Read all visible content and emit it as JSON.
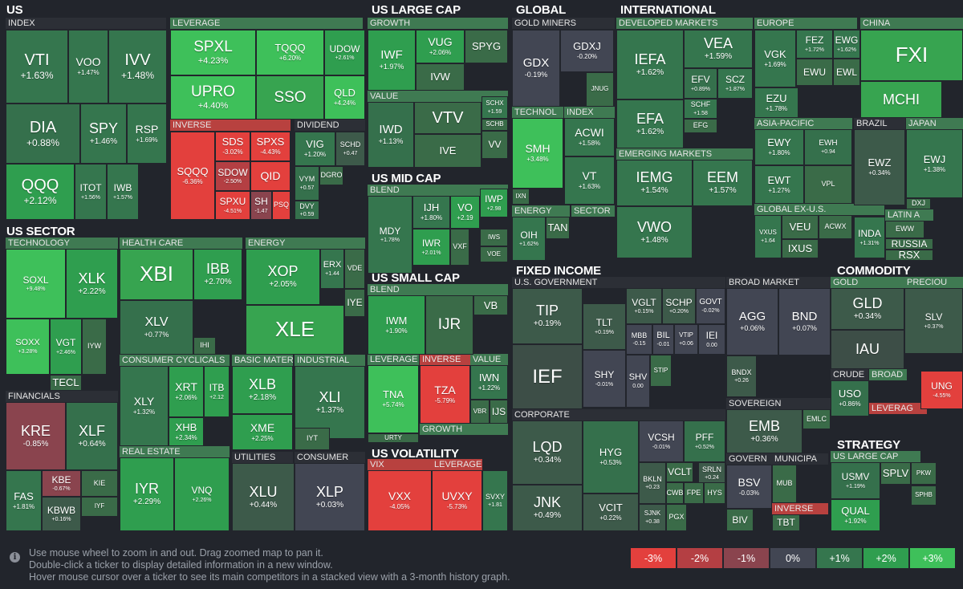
{
  "colors": {
    "background": "#22252c",
    "header_band": "#2c2f36",
    "scale": {
      "-3": "#e3403d",
      "-2": "#b43f43",
      "-1": "#8a444e",
      "0": "#424653",
      "1": "#35764e",
      "2": "#2f9e4f",
      "3": "#3ec05a"
    }
  },
  "sectors": [
    {
      "label": "US"
    },
    {
      "label": "US LARGE CAP"
    },
    {
      "label": "GLOBAL"
    },
    {
      "label": "INTERNATIONAL"
    },
    {
      "label": "US SECTOR"
    },
    {
      "label": "US MID CAP"
    },
    {
      "label": "US SMALL CAP"
    },
    {
      "label": "FIXED INCOME"
    },
    {
      "label": "COMMODITY"
    },
    {
      "label": "US VOLATILITY"
    },
    {
      "label": "STRATEGY"
    }
  ],
  "industries": [
    {
      "label": "INDEX"
    },
    {
      "label": "LEVERAGE"
    },
    {
      "label": "INVERSE"
    },
    {
      "label": "DIVIDEND"
    },
    {
      "label": "GROWTH"
    },
    {
      "label": "VALUE"
    },
    {
      "label": "GOLD MINERS"
    },
    {
      "label": "TECHNOL"
    },
    {
      "label": "INDEX"
    },
    {
      "label": "ENERGY"
    },
    {
      "label": "SECTOR"
    },
    {
      "label": "DEVELOPED MARKETS"
    },
    {
      "label": "EMERGING MARKETS"
    },
    {
      "label": "EUROPE"
    },
    {
      "label": "ASIA-PACIFIC"
    },
    {
      "label": "GLOBAL EX-U.S."
    },
    {
      "label": "CHINA"
    },
    {
      "label": "BRAZIL"
    },
    {
      "label": "JAPAN"
    },
    {
      "label": "LATIN A"
    },
    {
      "label": "TECHNOLOGY"
    },
    {
      "label": "HEALTH CARE"
    },
    {
      "label": "ENERGY"
    },
    {
      "label": "FINANCIALS"
    },
    {
      "label": "CONSUMER CYCLICALS"
    },
    {
      "label": "BASIC MATER"
    },
    {
      "label": "INDUSTRIAL"
    },
    {
      "label": "REAL ESTATE"
    },
    {
      "label": "UTILITIES"
    },
    {
      "label": "CONSUMER"
    },
    {
      "label": "BLEND"
    },
    {
      "label": "BLEND"
    },
    {
      "label": "LEVERAGE"
    },
    {
      "label": "INVERSE"
    },
    {
      "label": "VALUE"
    },
    {
      "label": "GROWTH"
    },
    {
      "label": "VIX"
    },
    {
      "label": "LEVERAGE"
    },
    {
      "label": "U.S. GOVERNMENT"
    },
    {
      "label": "BROAD MARKET"
    },
    {
      "label": "CORPORATE"
    },
    {
      "label": "SOVEREIGN"
    },
    {
      "label": "GOVERN"
    },
    {
      "label": "MUNICIPA"
    },
    {
      "label": "INVERSE"
    },
    {
      "label": "GOLD"
    },
    {
      "label": "PRECIOU"
    },
    {
      "label": "CRUDE"
    },
    {
      "label": "BROAD"
    },
    {
      "label": "LEVERAG"
    },
    {
      "label": "US LARGE CAP"
    }
  ],
  "tiles": [
    {
      "t": "VTI",
      "p": "+1.63%"
    },
    {
      "t": "VOO",
      "p": "+1.47%"
    },
    {
      "t": "IVV",
      "p": "+1.48%"
    },
    {
      "t": "DIA",
      "p": "+0.88%"
    },
    {
      "t": "SPY",
      "p": "+1.46%"
    },
    {
      "t": "RSP",
      "p": "+1.69%"
    },
    {
      "t": "QQQ",
      "p": "+2.12%"
    },
    {
      "t": "ITOT",
      "p": "+1.56%"
    },
    {
      "t": "IWB",
      "p": "+1.57%"
    },
    {
      "t": "SPXL",
      "p": "+4.23%"
    },
    {
      "t": "TQQQ",
      "p": "+6.20%"
    },
    {
      "t": "UDOW",
      "p": "+2.61%"
    },
    {
      "t": "UPRO",
      "p": "+4.40%"
    },
    {
      "t": "SSO",
      "p": ""
    },
    {
      "t": "QLD",
      "p": "+4.24%"
    },
    {
      "t": "SQQQ",
      "p": "-6.36%"
    },
    {
      "t": "SDS",
      "p": "-3.02%"
    },
    {
      "t": "SPXS",
      "p": "-4.43%"
    },
    {
      "t": "SDOW",
      "p": "-2.50%"
    },
    {
      "t": "QID",
      "p": ""
    },
    {
      "t": "SPXU",
      "p": "-4.51%"
    },
    {
      "t": "SH",
      "p": "-1.47"
    },
    {
      "t": "PSQ",
      "p": ""
    },
    {
      "t": "VIG",
      "p": "+1.20%"
    },
    {
      "t": "SCHD",
      "p": "+0.47"
    },
    {
      "t": "VYM",
      "p": "+0.57"
    },
    {
      "t": "DGRO",
      "p": ""
    },
    {
      "t": "DVY",
      "p": "+0.59"
    },
    {
      "t": "IWF",
      "p": "+1.97%"
    },
    {
      "t": "VUG",
      "p": "+2.06%"
    },
    {
      "t": "SPYG",
      "p": ""
    },
    {
      "t": "IVW",
      "p": ""
    },
    {
      "t": "IWD",
      "p": "+1.13%"
    },
    {
      "t": "VTV",
      "p": ""
    },
    {
      "t": "IVE",
      "p": ""
    },
    {
      "t": "SCHX",
      "p": "+1.59"
    },
    {
      "t": "SCHB",
      "p": ""
    },
    {
      "t": "VV",
      "p": ""
    },
    {
      "t": "GDX",
      "p": "-0.19%"
    },
    {
      "t": "GDXJ",
      "p": "-0.20%"
    },
    {
      "t": "JNUG",
      "p": ""
    },
    {
      "t": "SMH",
      "p": "+3.48%"
    },
    {
      "t": "IXN",
      "p": ""
    },
    {
      "t": "ACWI",
      "p": "+1.58%"
    },
    {
      "t": "VT",
      "p": "+1.63%"
    },
    {
      "t": "OIH",
      "p": "+1.62%"
    },
    {
      "t": "TAN",
      "p": ""
    },
    {
      "t": "IEFA",
      "p": "+1.62%"
    },
    {
      "t": "VEA",
      "p": "+1.59%"
    },
    {
      "t": "EFA",
      "p": "+1.62%"
    },
    {
      "t": "EFV",
      "p": "+0.89%"
    },
    {
      "t": "SCZ",
      "p": "+1.87%"
    },
    {
      "t": "SCHF",
      "p": "+1.58"
    },
    {
      "t": "EFG",
      "p": ""
    },
    {
      "t": "IEMG",
      "p": "+1.54%"
    },
    {
      "t": "EEM",
      "p": "+1.57%"
    },
    {
      "t": "VWO",
      "p": "+1.48%"
    },
    {
      "t": "VGK",
      "p": "+1.69%"
    },
    {
      "t": "FEZ",
      "p": "+1.72%"
    },
    {
      "t": "EWG",
      "p": "+1.62%"
    },
    {
      "t": "EWU",
      "p": ""
    },
    {
      "t": "EWL",
      "p": ""
    },
    {
      "t": "EZU",
      "p": "+1.78%"
    },
    {
      "t": "EWY",
      "p": "+1.80%"
    },
    {
      "t": "EWH",
      "p": "+0.94"
    },
    {
      "t": "EWT",
      "p": "+1.27%"
    },
    {
      "t": "VPL",
      "p": ""
    },
    {
      "t": "VXUS",
      "p": "+1.64"
    },
    {
      "t": "VEU",
      "p": ""
    },
    {
      "t": "ACWX",
      "p": ""
    },
    {
      "t": "IXUS",
      "p": ""
    },
    {
      "t": "FXI",
      "p": ""
    },
    {
      "t": "MCHI",
      "p": ""
    },
    {
      "t": "EWZ",
      "p": "+0.34%"
    },
    {
      "t": "EWJ",
      "p": "+1.38%"
    },
    {
      "t": "DXJ",
      "p": ""
    },
    {
      "t": "INDA",
      "p": "+1.31%"
    },
    {
      "t": "EWW",
      "p": ""
    },
    {
      "t": "RUSSIA",
      "p": ""
    },
    {
      "t": "RSX",
      "p": ""
    },
    {
      "t": "SOXL",
      "p": "+9.48%"
    },
    {
      "t": "XLK",
      "p": "+2.22%"
    },
    {
      "t": "SOXX",
      "p": "+3.28%"
    },
    {
      "t": "VGT",
      "p": "+2.46%"
    },
    {
      "t": "IYW",
      "p": ""
    },
    {
      "t": "TECL",
      "p": ""
    },
    {
      "t": "XBI",
      "p": ""
    },
    {
      "t": "IBB",
      "p": "+2.70%"
    },
    {
      "t": "XLV",
      "p": "+0.77%"
    },
    {
      "t": "IHI",
      "p": ""
    },
    {
      "t": "XOP",
      "p": "+2.05%"
    },
    {
      "t": "ERX",
      "p": "+1.44"
    },
    {
      "t": "VDE",
      "p": ""
    },
    {
      "t": "IYE",
      "p": ""
    },
    {
      "t": "XLE",
      "p": ""
    },
    {
      "t": "KRE",
      "p": "-0.85%"
    },
    {
      "t": "XLF",
      "p": "+0.64%"
    },
    {
      "t": "FAS",
      "p": "+1.81%"
    },
    {
      "t": "KBE",
      "p": "-0.67%"
    },
    {
      "t": "KBWB",
      "p": "+0.16%"
    },
    {
      "t": "KIE",
      "p": ""
    },
    {
      "t": "IYF",
      "p": ""
    },
    {
      "t": "XLY",
      "p": "+1.32%"
    },
    {
      "t": "XRT",
      "p": "+2.06%"
    },
    {
      "t": "ITB",
      "p": "+2.12"
    },
    {
      "t": "XHB",
      "p": "+2.34%"
    },
    {
      "t": "XLB",
      "p": "+2.18%"
    },
    {
      "t": "XME",
      "p": "+2.25%"
    },
    {
      "t": "XLI",
      "p": "+1.37%"
    },
    {
      "t": "IYT",
      "p": ""
    },
    {
      "t": "IYR",
      "p": "+2.29%"
    },
    {
      "t": "VNQ",
      "p": "+2.26%"
    },
    {
      "t": "XLU",
      "p": "+0.44%"
    },
    {
      "t": "XLP",
      "p": "+0.03%"
    },
    {
      "t": "MDY",
      "p": "+1.78%"
    },
    {
      "t": "IJH",
      "p": "+1.80%"
    },
    {
      "t": "VO",
      "p": "+2.19"
    },
    {
      "t": "IWR",
      "p": "+2.01%"
    },
    {
      "t": "VXF",
      "p": ""
    },
    {
      "t": "IWP",
      "p": "+2.98"
    },
    {
      "t": "IWS",
      "p": ""
    },
    {
      "t": "VOE",
      "p": ""
    },
    {
      "t": "IWM",
      "p": "+1.90%"
    },
    {
      "t": "IJR",
      "p": ""
    },
    {
      "t": "VB",
      "p": ""
    },
    {
      "t": "TNA",
      "p": "+5.74%"
    },
    {
      "t": "URTY",
      "p": ""
    },
    {
      "t": "TZA",
      "p": "-5.79%"
    },
    {
      "t": "IWN",
      "p": "+1.22%"
    },
    {
      "t": "VBR",
      "p": ""
    },
    {
      "t": "IJS",
      "p": ""
    },
    {
      "t": "VXX",
      "p": "-4.05%"
    },
    {
      "t": "UVXY",
      "p": "-5.73%"
    },
    {
      "t": "SVXY",
      "p": "+1.81"
    },
    {
      "t": "TIP",
      "p": "+0.19%"
    },
    {
      "t": "IEF",
      "p": ""
    },
    {
      "t": "VGLT",
      "p": "+0.15%"
    },
    {
      "t": "SCHP",
      "p": "+0.20%"
    },
    {
      "t": "GOVT",
      "p": "-0.02%"
    },
    {
      "t": "TLT",
      "p": "+0.19%"
    },
    {
      "t": "MBB",
      "p": "-0.15"
    },
    {
      "t": "BIL",
      "p": "-0.01"
    },
    {
      "t": "VTIP",
      "p": "+0.06"
    },
    {
      "t": "IEI",
      "p": "0.00"
    },
    {
      "t": "STIP",
      "p": ""
    },
    {
      "t": "SHY",
      "p": "-0.01%"
    },
    {
      "t": "SHV",
      "p": "0.00"
    },
    {
      "t": "AGG",
      "p": "+0.06%"
    },
    {
      "t": "BND",
      "p": "+0.07%"
    },
    {
      "t": "BNDX",
      "p": "+0.26"
    },
    {
      "t": "EMB",
      "p": "+0.36%"
    },
    {
      "t": "EMLC",
      "p": ""
    },
    {
      "t": "LQD",
      "p": "+0.34%"
    },
    {
      "t": "HYG",
      "p": "+0.53%"
    },
    {
      "t": "VCSH",
      "p": "-0.01%"
    },
    {
      "t": "PFF",
      "p": "+0.52%"
    },
    {
      "t": "JNK",
      "p": "+0.49%"
    },
    {
      "t": "BKLN",
      "p": "+0.23"
    },
    {
      "t": "VCLT",
      "p": ""
    },
    {
      "t": "SRLN",
      "p": "+0.24"
    },
    {
      "t": "CWB",
      "p": ""
    },
    {
      "t": "FPE",
      "p": ""
    },
    {
      "t": "HYS",
      "p": ""
    },
    {
      "t": "VCIT",
      "p": "+0.22%"
    },
    {
      "t": "SJNK",
      "p": "+0.38"
    },
    {
      "t": "PGX",
      "p": ""
    },
    {
      "t": "BSV",
      "p": "-0.03%"
    },
    {
      "t": "BIV",
      "p": ""
    },
    {
      "t": "MUB",
      "p": ""
    },
    {
      "t": "TBT",
      "p": ""
    },
    {
      "t": "GLD",
      "p": "+0.34%"
    },
    {
      "t": "IAU",
      "p": ""
    },
    {
      "t": "SLV",
      "p": "+0.37%"
    },
    {
      "t": "USO",
      "p": "+0.86%"
    },
    {
      "t": "UNG",
      "p": "-4.55%"
    },
    {
      "t": "USMV",
      "p": "+1.19%"
    },
    {
      "t": "SPLV",
      "p": ""
    },
    {
      "t": "PKW",
      "p": ""
    },
    {
      "t": "SPHB",
      "p": ""
    },
    {
      "t": "QUAL",
      "p": "+1.92%"
    }
  ],
  "footer": {
    "info_icon": "info-icon",
    "help_lines": [
      "Use mouse wheel to zoom in and out. Drag zoomed map to pan it.",
      "Double-click a ticker to display detailed information in a new window.",
      "Hover mouse cursor over a ticker to see its main competitors in a stacked view with a 3-month history graph."
    ],
    "legend": [
      {
        "label": "-3%",
        "color": "#e3403d"
      },
      {
        "label": "-2%",
        "color": "#b43f43"
      },
      {
        "label": "-1%",
        "color": "#8a444e"
      },
      {
        "label": "0%",
        "color": "#424653"
      },
      {
        "label": "+1%",
        "color": "#35764e"
      },
      {
        "label": "+2%",
        "color": "#2f9e4f"
      },
      {
        "label": "+3%",
        "color": "#3ec05a"
      }
    ]
  }
}
